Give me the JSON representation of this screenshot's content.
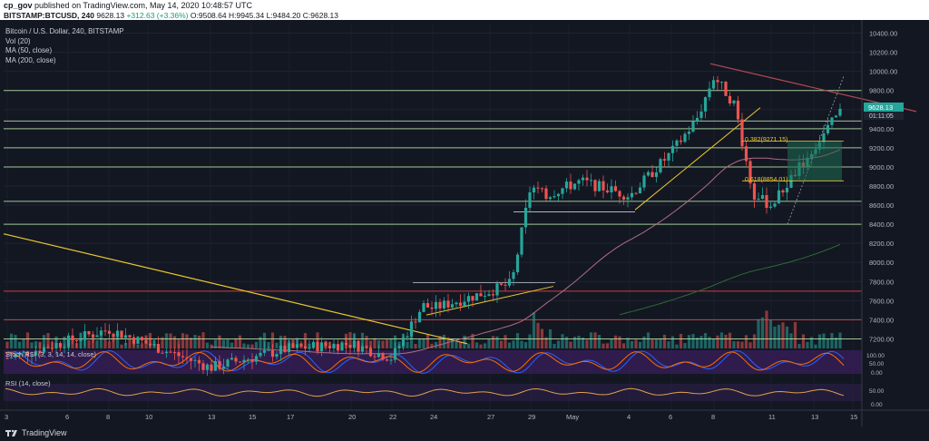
{
  "publish_line": {
    "author": "cp_gov",
    "text": "published on TradingView.com, May 14, 2020 10:48:57 UTC"
  },
  "ticker_line": {
    "symbol": "BITSTAMP:BTCUSD, 240",
    "last": "9628.13",
    "change": "+312.63 (+3.36%)",
    "o": "O:9508.64",
    "h": "H:9945.34",
    "l": "L:9484.20",
    "c": "C:9628.13"
  },
  "legend": {
    "title": "Bitcoin / U.S. Dollar, 240, BITSTAMP",
    "vol": "Vol (20)",
    "ma50": "MA (50, close)",
    "ma200": "MA (200, close)"
  },
  "price_axis": {
    "ticks": [
      "10400.00",
      "10200.00",
      "10000.00",
      "9800.00",
      "9600.00",
      "9400.00",
      "9200.00",
      "9000.00",
      "8800.00",
      "8600.00",
      "8400.00",
      "8200.00",
      "8000.00",
      "7800.00",
      "7600.00",
      "7400.00",
      "7200.00"
    ],
    "current_price": "9628.13",
    "countdown": "01:11:05"
  },
  "stoch_rsi": {
    "label": "Stoch RSI (3, 3, 14, 14, close)",
    "ticks": [
      "100.00",
      "50.00",
      "0.00"
    ]
  },
  "rsi": {
    "label": "RSI (14, close)",
    "ticks": [
      "50.00",
      "0.00"
    ]
  },
  "time_axis": {
    "labels": [
      "3",
      "6",
      "8",
      "10",
      "13",
      "15",
      "17",
      "20",
      "22",
      "24",
      "27",
      "29",
      "May",
      "4",
      "6",
      "8",
      "11",
      "13",
      "15"
    ]
  },
  "fib_labels": {
    "upper": "0.382(9271.15)",
    "lower": "0.618(8854.01)"
  },
  "footer": {
    "brand": "TradingView"
  },
  "colors": {
    "background": "#131722",
    "up_candle": "#26a69a",
    "down_candle": "#ef5350",
    "support_line": "#b7e4a6",
    "resistance_line": "#e24a47",
    "trend_yellow": "#e9c72e",
    "ma50": "#b06c83",
    "ma200": "#2f6b36",
    "stoch_fill": "#3a1f5c",
    "fib_box": "#1e6b52"
  },
  "chart_data": {
    "type": "candlestick",
    "title": "Bitcoin / U.S. Dollar, 240, BITSTAMP",
    "ylim": [
      7100,
      10500
    ],
    "horizontal_levels": [
      9800,
      9480,
      9400,
      9200,
      9000,
      8640,
      8400,
      7700,
      7400,
      7200
    ],
    "close_path": [
      [
        "Apr 3",
        7000
      ],
      [
        "Apr 8",
        7300
      ],
      [
        "Apr 13",
        6900
      ],
      [
        "Apr 17",
        7100
      ],
      [
        "Apr 20",
        7150
      ],
      [
        "Apr 22",
        7000
      ],
      [
        "Apr 23",
        7550
      ],
      [
        "Apr 24",
        7520
      ],
      [
        "Apr 27",
        7700
      ],
      [
        "Apr 28",
        7780
      ],
      [
        "Apr 29",
        8800
      ],
      [
        "Apr 30",
        8700
      ],
      [
        "May 2",
        8850
      ],
      [
        "May 4",
        8700
      ],
      [
        "May 6",
        9150
      ],
      [
        "May 7",
        9500
      ],
      [
        "May 8",
        9950
      ],
      [
        "May 9",
        9650
      ],
      [
        "May 10",
        8700
      ],
      [
        "May 11",
        8600
      ],
      [
        "May 12",
        8850
      ],
      [
        "May 13",
        9200
      ],
      [
        "May 14",
        9628.13
      ]
    ],
    "fibonacci": [
      {
        "level": 0.382,
        "price": 9271.15
      },
      {
        "level": 0.618,
        "price": 8854.01
      }
    ]
  }
}
